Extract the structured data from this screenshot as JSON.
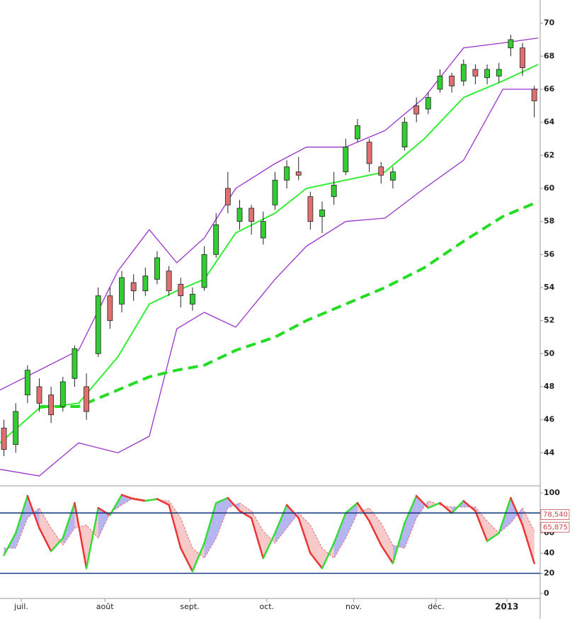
{
  "chart_data": [
    {
      "type": "candlestick",
      "xlim": [
        0,
        137.5
      ],
      "xticks": [
        {
          "value": 5.4,
          "label": "juil."
        },
        {
          "value": 26.7,
          "label": "août"
        },
        {
          "value": 48.3,
          "label": "sept."
        },
        {
          "value": 67.9,
          "label": "oct."
        },
        {
          "value": 90,
          "label": "nov."
        },
        {
          "value": 111,
          "label": "déc."
        },
        {
          "value": 129,
          "label": "2013"
        }
      ],
      "ylim": [
        42,
        71.4
      ],
      "yticks": [
        44,
        46,
        48,
        50,
        52,
        54,
        56,
        58,
        60,
        62,
        64,
        66,
        68,
        70
      ],
      "candles": {
        "x": [
          1,
          4,
          7,
          10,
          13,
          16,
          19,
          22,
          25,
          28,
          31,
          34,
          37,
          40,
          43,
          46,
          49,
          52,
          55,
          58,
          61,
          64,
          67,
          70,
          73,
          76,
          79,
          82,
          85,
          88,
          91,
          94,
          97,
          100,
          103,
          106,
          109,
          112,
          115,
          118,
          121,
          124,
          127,
          130,
          133,
          136
        ],
        "open": [
          45.5,
          44.5,
          47.5,
          48,
          47.5,
          46.8,
          48.5,
          48,
          50,
          53.5,
          53,
          54.3,
          53.8,
          54.5,
          55,
          54.2,
          53,
          54,
          56,
          60,
          58,
          58.8,
          57,
          59,
          60.5,
          61,
          59.5,
          58.3,
          59.5,
          61,
          63,
          62.8,
          61.3,
          60.5,
          62.5,
          65,
          64.8,
          66,
          66.8,
          66.5,
          67.2,
          66.7,
          66.8,
          68.5,
          68.5,
          66
        ],
        "high": [
          46,
          47,
          49.3,
          48.5,
          48,
          48.6,
          50.5,
          48.8,
          54,
          54,
          55,
          54.8,
          55.2,
          56.2,
          55.3,
          54.6,
          54,
          56.5,
          58.5,
          61,
          59.3,
          59,
          58.6,
          61,
          61.7,
          61.9,
          59.8,
          59.2,
          61,
          63,
          64.2,
          63,
          61.6,
          61.3,
          64.3,
          65.5,
          65.8,
          67.2,
          67,
          67.8,
          67.5,
          67.5,
          67.6,
          69.3,
          68.8,
          66.2
        ],
        "low": [
          43.8,
          44,
          47,
          46.5,
          45.8,
          46.5,
          48,
          46,
          49.8,
          51.5,
          52.5,
          53.2,
          53.5,
          54.2,
          53.5,
          52.8,
          52.6,
          53.8,
          55.8,
          58.5,
          57.5,
          57.2,
          56.6,
          58.7,
          60,
          60.5,
          57.5,
          57.3,
          59,
          60.8,
          62.8,
          61,
          60.3,
          60,
          62.3,
          64,
          64.5,
          65.8,
          65.8,
          66.2,
          66.3,
          66.3,
          66.4,
          68,
          66.8,
          64.3
        ],
        "close": [
          44.2,
          46.5,
          49,
          47,
          46.3,
          48.3,
          50.3,
          46.5,
          53.5,
          52,
          54.6,
          53.8,
          54.7,
          55.8,
          53.8,
          53.5,
          53.6,
          56,
          57.8,
          59,
          58.8,
          58,
          58,
          60.5,
          61.3,
          60.8,
          58,
          58.7,
          60.2,
          62.5,
          63.8,
          61.5,
          60.8,
          61,
          64,
          64.5,
          65.5,
          66.8,
          66.2,
          67.5,
          66.8,
          67.2,
          67.2,
          69,
          67.3,
          65.3
        ],
        "up_color": "#33cc33",
        "down_color": "#e07070"
      },
      "line_x": [
        0,
        10,
        20,
        30,
        38,
        45,
        52,
        60,
        70,
        78,
        88,
        98,
        108,
        118,
        128,
        137
      ],
      "series": [
        {
          "color": "#9933cc",
          "style": "solid",
          "values": [
            47.8,
            49,
            50.2,
            55,
            57.5,
            55.5,
            57,
            60,
            61.5,
            62.5,
            62.5,
            63.5,
            65.5,
            68.5,
            68.8,
            69.1
          ]
        },
        {
          "color": "#9933cc",
          "style": "solid",
          "values": [
            43,
            42.6,
            44.6,
            44,
            45,
            51.5,
            52.5,
            51.6,
            54.5,
            56.5,
            58,
            58.2,
            60,
            61.7,
            66,
            66
          ]
        },
        {
          "color": "#33ee33",
          "style": "solid",
          "values": [
            44.6,
            46.7,
            47,
            49.8,
            53,
            53.8,
            54.5,
            57.3,
            58.5,
            60,
            60.5,
            61,
            63,
            65.5,
            66.5,
            67.5
          ]
        },
        {
          "color": "#22dd22",
          "style": "dashed",
          "values": [
            null,
            46.8,
            46.8,
            47.8,
            48.6,
            49,
            49.3,
            50.2,
            51,
            52,
            53,
            54,
            55.2,
            56.8,
            58.3,
            59.2
          ]
        }
      ]
    },
    {
      "type": "stochastic",
      "x": [
        1,
        4,
        7,
        10,
        13,
        16,
        19,
        22,
        25,
        28,
        31,
        34,
        37,
        40,
        43,
        46,
        49,
        52,
        55,
        58,
        61,
        64,
        67,
        70,
        73,
        76,
        79,
        82,
        85,
        88,
        91,
        94,
        97,
        100,
        103,
        106,
        109,
        112,
        115,
        118,
        121,
        124,
        127,
        130,
        133,
        136
      ],
      "k": [
        38,
        60,
        97,
        65,
        42,
        55,
        90,
        25,
        85,
        78,
        98,
        94,
        92,
        94,
        88,
        45,
        22,
        50,
        90,
        95,
        82,
        75,
        35,
        60,
        88,
        75,
        40,
        25,
        50,
        80,
        90,
        72,
        48,
        30,
        70,
        97,
        85,
        90,
        80,
        92,
        82,
        52,
        60,
        95,
        68,
        30
      ],
      "d": [
        45,
        45,
        75,
        85,
        65,
        48,
        65,
        68,
        55,
        80,
        88,
        95,
        93,
        93,
        92,
        75,
        45,
        35,
        55,
        85,
        90,
        82,
        62,
        50,
        65,
        80,
        68,
        45,
        35,
        55,
        80,
        85,
        70,
        48,
        45,
        75,
        92,
        88,
        86,
        86,
        86,
        72,
        60,
        70,
        85,
        62
      ],
      "ylim": [
        -5,
        107
      ],
      "yticks": [
        0,
        20,
        40,
        60,
        100
      ],
      "levels": [
        80,
        20
      ],
      "level_color": "#1a3a80",
      "k_up_color": "#33dd33",
      "k_down_color": "#ee3333",
      "d_color": "#e07070",
      "fill_up": "#a8a8f0",
      "fill_down": "#f7c0c0",
      "readouts": [
        {
          "value": 78.54,
          "label": "78,540"
        },
        {
          "value": 65.875,
          "label": "65,875"
        }
      ]
    }
  ]
}
